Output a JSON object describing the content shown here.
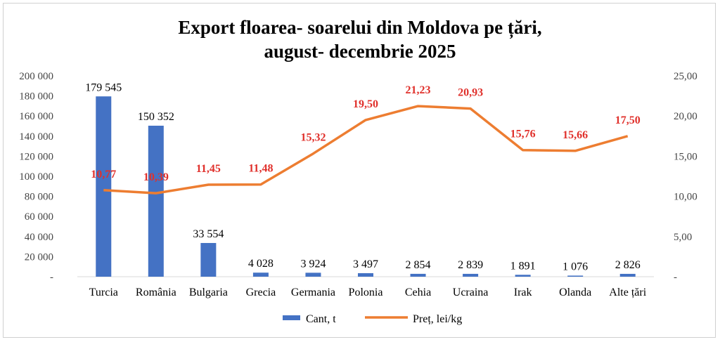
{
  "chart_data": {
    "type": "bar",
    "title_line1": "Export floarea- soarelui din Moldova pe țări,",
    "title_line2": "august- decembrie 2025",
    "categories": [
      "Turcia",
      "România",
      "Bulgaria",
      "Grecia",
      "Germania",
      "Polonia",
      "Cehia",
      "Ucraina",
      "Irak",
      "Olanda",
      "Alte țări"
    ],
    "series": [
      {
        "name": "Cant, t",
        "type": "bar",
        "axis": "left",
        "values": [
          179545,
          150352,
          33554,
          4028,
          3924,
          3497,
          2854,
          2839,
          1891,
          1076,
          2826
        ],
        "labels": [
          "179 545",
          "150 352",
          "33 554",
          "4 028",
          "3 924",
          "3 497",
          "2 854",
          "2 839",
          "1 891",
          "1 076",
          "2 826"
        ],
        "color": "#4472C4"
      },
      {
        "name": "Preț, lei/kg",
        "type": "line",
        "axis": "right",
        "values": [
          10.77,
          10.39,
          11.45,
          11.48,
          15.32,
          19.5,
          21.23,
          20.93,
          15.76,
          15.66,
          17.5
        ],
        "labels": [
          "10,77",
          "10,39",
          "11,45",
          "11,48",
          "15,32",
          "19,50",
          "21,23",
          "20,93",
          "15,76",
          "15,66",
          "17,50"
        ],
        "color": "#ED7D31",
        "label_color": "#E0302B"
      }
    ],
    "y_left": {
      "range": [
        0,
        200000
      ],
      "ticks": [
        0,
        20000,
        40000,
        60000,
        80000,
        100000,
        120000,
        140000,
        160000,
        180000,
        200000
      ],
      "tick_labels": [
        "-",
        "20 000",
        "40 000",
        "60 000",
        "80 000",
        "100 000",
        "120 000",
        "140 000",
        "160 000",
        "180 000",
        "200 000"
      ]
    },
    "y_right": {
      "range": [
        0,
        25
      ],
      "ticks": [
        0,
        5,
        10,
        15,
        20,
        25
      ],
      "tick_labels": [
        "-",
        "5,00",
        "10,00",
        "15,00",
        "20,00",
        "25,00"
      ]
    },
    "grid": false,
    "legend_position": "bottom"
  }
}
